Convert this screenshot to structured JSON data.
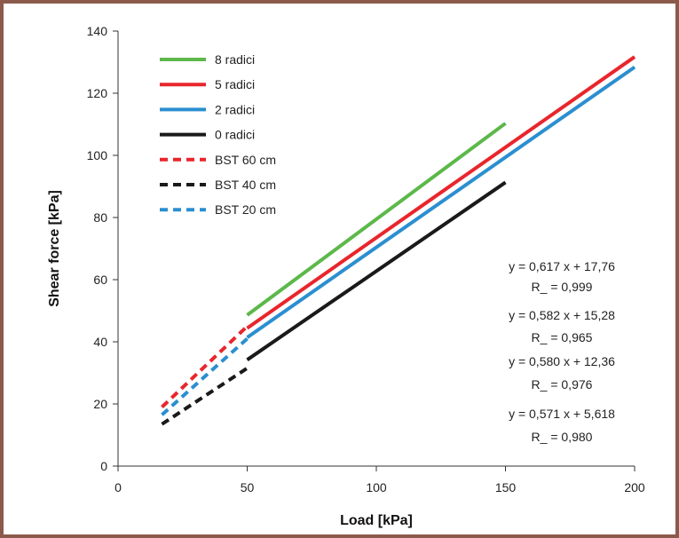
{
  "chart_data": {
    "type": "line",
    "xlabel": "Load [kPa]",
    "ylabel": "Shear force [kPa]",
    "xlim": [
      0,
      200
    ],
    "ylim": [
      0,
      140
    ],
    "xticks": [
      0,
      50,
      100,
      150,
      200
    ],
    "yticks": [
      0,
      20,
      40,
      60,
      80,
      100,
      120,
      140
    ],
    "grid": false,
    "legend_position": "top-left",
    "series": [
      {
        "name": "8 radici",
        "color": "#5cb84a",
        "style": "solid",
        "x": [
          50,
          150
        ],
        "y": [
          48.6,
          110.3
        ]
      },
      {
        "name": "5 radici",
        "color": "#e8262c",
        "style": "solid",
        "x": [
          50,
          200
        ],
        "y": [
          44.4,
          131.7
        ]
      },
      {
        "name": "2 radici",
        "color": "#2b8fd0",
        "style": "solid",
        "x": [
          50,
          200
        ],
        "y": [
          41.4,
          128.4
        ]
      },
      {
        "name": "0 radici",
        "color": "#1a1a1a",
        "style": "solid",
        "x": [
          50,
          150
        ],
        "y": [
          34.2,
          91.3
        ]
      },
      {
        "name": "BST 60 cm",
        "color": "#e8262c",
        "style": "dashed",
        "x": [
          17,
          50
        ],
        "y": [
          19,
          45
        ]
      },
      {
        "name": "BST 40 cm",
        "color": "#1a1a1a",
        "style": "dashed",
        "x": [
          17,
          50
        ],
        "y": [
          13.5,
          31.5
        ]
      },
      {
        "name": "BST 20 cm",
        "color": "#2b8fd0",
        "style": "dashed",
        "x": [
          17,
          50
        ],
        "y": [
          16.5,
          41
        ]
      }
    ],
    "annotations": [
      {
        "line1": "y = 0,617 x + 17,76",
        "line2": "R_ = 0,999"
      },
      {
        "line1": "y = 0,582 x + 15,28",
        "line2": "R_ = 0,965"
      },
      {
        "line1": "y = 0,580 x + 12,36",
        "line2": "R_ = 0,976"
      },
      {
        "line1": "y = 0,571 x + 5,618",
        "line2": "R_ = 0,980"
      }
    ]
  }
}
